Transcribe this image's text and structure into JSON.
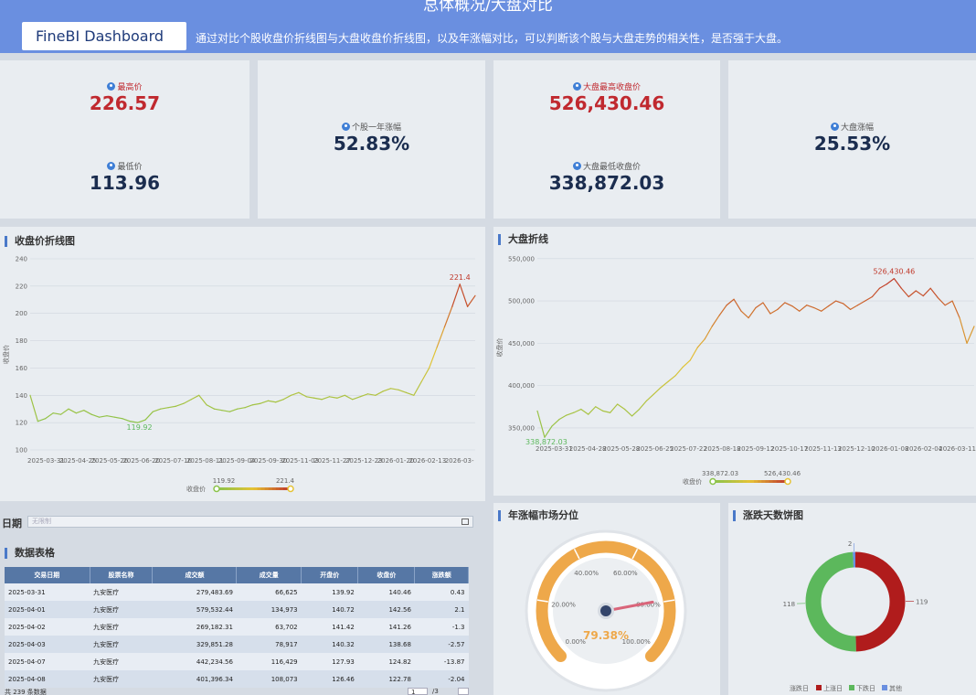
{
  "header": {
    "title": "总体概况/大盘对比",
    "brand": "FineBI Dashboard",
    "description": "通过对比个股收盘价折线图与大盘收盘价折线图，以及年涨幅对比，可以判断该个股与大盘走势的相关性，是否强于大盘。"
  },
  "kpis": {
    "max_price_label": "最高价",
    "max_price": "226.57",
    "min_price_label": "最低价",
    "min_price": "113.96",
    "stock_change_label": "个股一年涨幅",
    "stock_change": "52.83%",
    "index_max_label": "大盘最高收盘价",
    "index_max": "526,430.46",
    "index_min_label": "大盘最低收盘价",
    "index_min": "338,872.03",
    "index_change_label": "大盘涨幅",
    "index_change": "25.53%"
  },
  "panels": {
    "close_chart_title": "收盘价折线图",
    "index_chart_title": "大盘折线",
    "gauge_title": "年涨幅市场分位",
    "donut_title": "涨跌天数饼图",
    "table_title": "数据表格"
  },
  "filter": {
    "label": "日期",
    "placeholder": "无限制"
  },
  "colors": {
    "header": "#6a8fe0",
    "red": "#c0292f",
    "green": "#5cb85c",
    "gauge": "#eea84a",
    "table_header": "#5677a5"
  },
  "chart_data": [
    {
      "type": "line",
      "title": "收盘价折线图",
      "ylabel": "收盘价",
      "ylim": [
        100,
        240
      ],
      "yticks": [
        "240",
        "220",
        "200",
        "180",
        "160",
        "140",
        "120",
        "100"
      ],
      "xticks": [
        "2025-03-31",
        "2025-04-25",
        "2025-05-26",
        "2025-06-20",
        "2025-07-16",
        "2025-08-11",
        "2025-09-04",
        "2025-09-30",
        "2025-11-03",
        "2025-11-27",
        "2025-12-23",
        "2026-01-20",
        "2026-02-13",
        "2026-03-"
      ],
      "values": [
        140,
        121,
        123,
        127,
        126,
        130,
        127,
        129,
        126,
        124,
        125,
        124,
        123,
        121,
        120,
        122,
        128,
        130,
        131,
        132,
        134,
        137,
        140,
        133,
        130,
        129,
        128,
        130,
        131,
        133,
        134,
        136,
        135,
        137,
        140,
        142,
        139,
        138,
        137,
        139,
        138,
        140,
        137,
        139,
        141,
        140,
        143,
        145,
        144,
        142,
        140,
        150,
        160,
        175,
        190,
        205,
        221.4,
        205,
        213
      ],
      "max_label": "221.4",
      "min_label": "119.92",
      "legend_title": "收盘价",
      "legend_min": "119.92",
      "legend_max": "221.4"
    },
    {
      "type": "line",
      "title": "大盘折线",
      "ylabel": "收盘价",
      "ylim": [
        338000,
        552000
      ],
      "yticks": [
        "550,000",
        "500,000",
        "450,000",
        "400,000",
        "350,000"
      ],
      "xticks": [
        "2025-03-31",
        "2025-04-28",
        "2025-05-28",
        "2025-06-25",
        "2025-07-22",
        "2025-08-18",
        "2025-09-12",
        "2025-10-17",
        "2025-11-13",
        "2025-12-10",
        "2026-01-08",
        "2026-02-04",
        "2026-03-11"
      ],
      "values": [
        370000,
        338872,
        352000,
        360000,
        365000,
        368000,
        372000,
        366000,
        375000,
        370000,
        368000,
        378000,
        372000,
        364000,
        372000,
        382000,
        390000,
        398000,
        405000,
        412000,
        422000,
        430000,
        445000,
        455000,
        470000,
        483000,
        495000,
        502000,
        488000,
        480000,
        492000,
        498000,
        485000,
        490000,
        498000,
        494000,
        488000,
        495000,
        492000,
        488000,
        494000,
        500000,
        497000,
        490000,
        495000,
        500000,
        505000,
        515000,
        520000,
        526430,
        515000,
        505000,
        512000,
        506000,
        515000,
        504000,
        495000,
        500000,
        480000,
        450000,
        470000
      ],
      "max_label": "526,430.46",
      "min_label": "338,872.03",
      "legend_title": "收盘价",
      "legend_min": "338,872.03",
      "legend_max": "526,430.46"
    },
    {
      "type": "gauge",
      "title": "年涨幅市场分位",
      "value": 79.38,
      "value_label": "79.38%",
      "ticks": [
        "0.00%",
        "20.00%",
        "40.00%",
        "60.00%",
        "80.00%",
        "100.00%"
      ]
    },
    {
      "type": "pie",
      "title": "涨跌天数饼图",
      "categories": [
        "上涨日",
        "下跌日",
        "其他"
      ],
      "values": [
        119,
        118,
        2
      ],
      "colors": [
        "#b01c1c",
        "#5cb85c",
        "#6a8fe0"
      ],
      "legend_title": "涨跌日"
    }
  ],
  "table": {
    "columns": [
      "交易日期",
      "股票名称",
      "成交额",
      "成交量",
      "开盘价",
      "收盘价",
      "涨跌额"
    ],
    "rows": [
      [
        "2025-03-31",
        "九安医疗",
        "279,483.69",
        "66,625",
        "139.92",
        "140.46",
        "0.43"
      ],
      [
        "2025-04-01",
        "九安医疗",
        "579,532.44",
        "134,973",
        "140.72",
        "142.56",
        "2.1"
      ],
      [
        "2025-04-02",
        "九安医疗",
        "269,182.31",
        "63,702",
        "141.42",
        "141.26",
        "-1.3"
      ],
      [
        "2025-04-03",
        "九安医疗",
        "329,851.28",
        "78,917",
        "140.32",
        "138.68",
        "-2.57"
      ],
      [
        "2025-04-07",
        "九安医疗",
        "442,234.56",
        "116,429",
        "127.93",
        "124.82",
        "-13.87"
      ],
      [
        "2025-04-08",
        "九安医疗",
        "401,396.34",
        "108,073",
        "126.46",
        "122.78",
        "-2.04"
      ]
    ],
    "footer": "共 239 条数据",
    "page": "1",
    "page_total": "/3"
  }
}
